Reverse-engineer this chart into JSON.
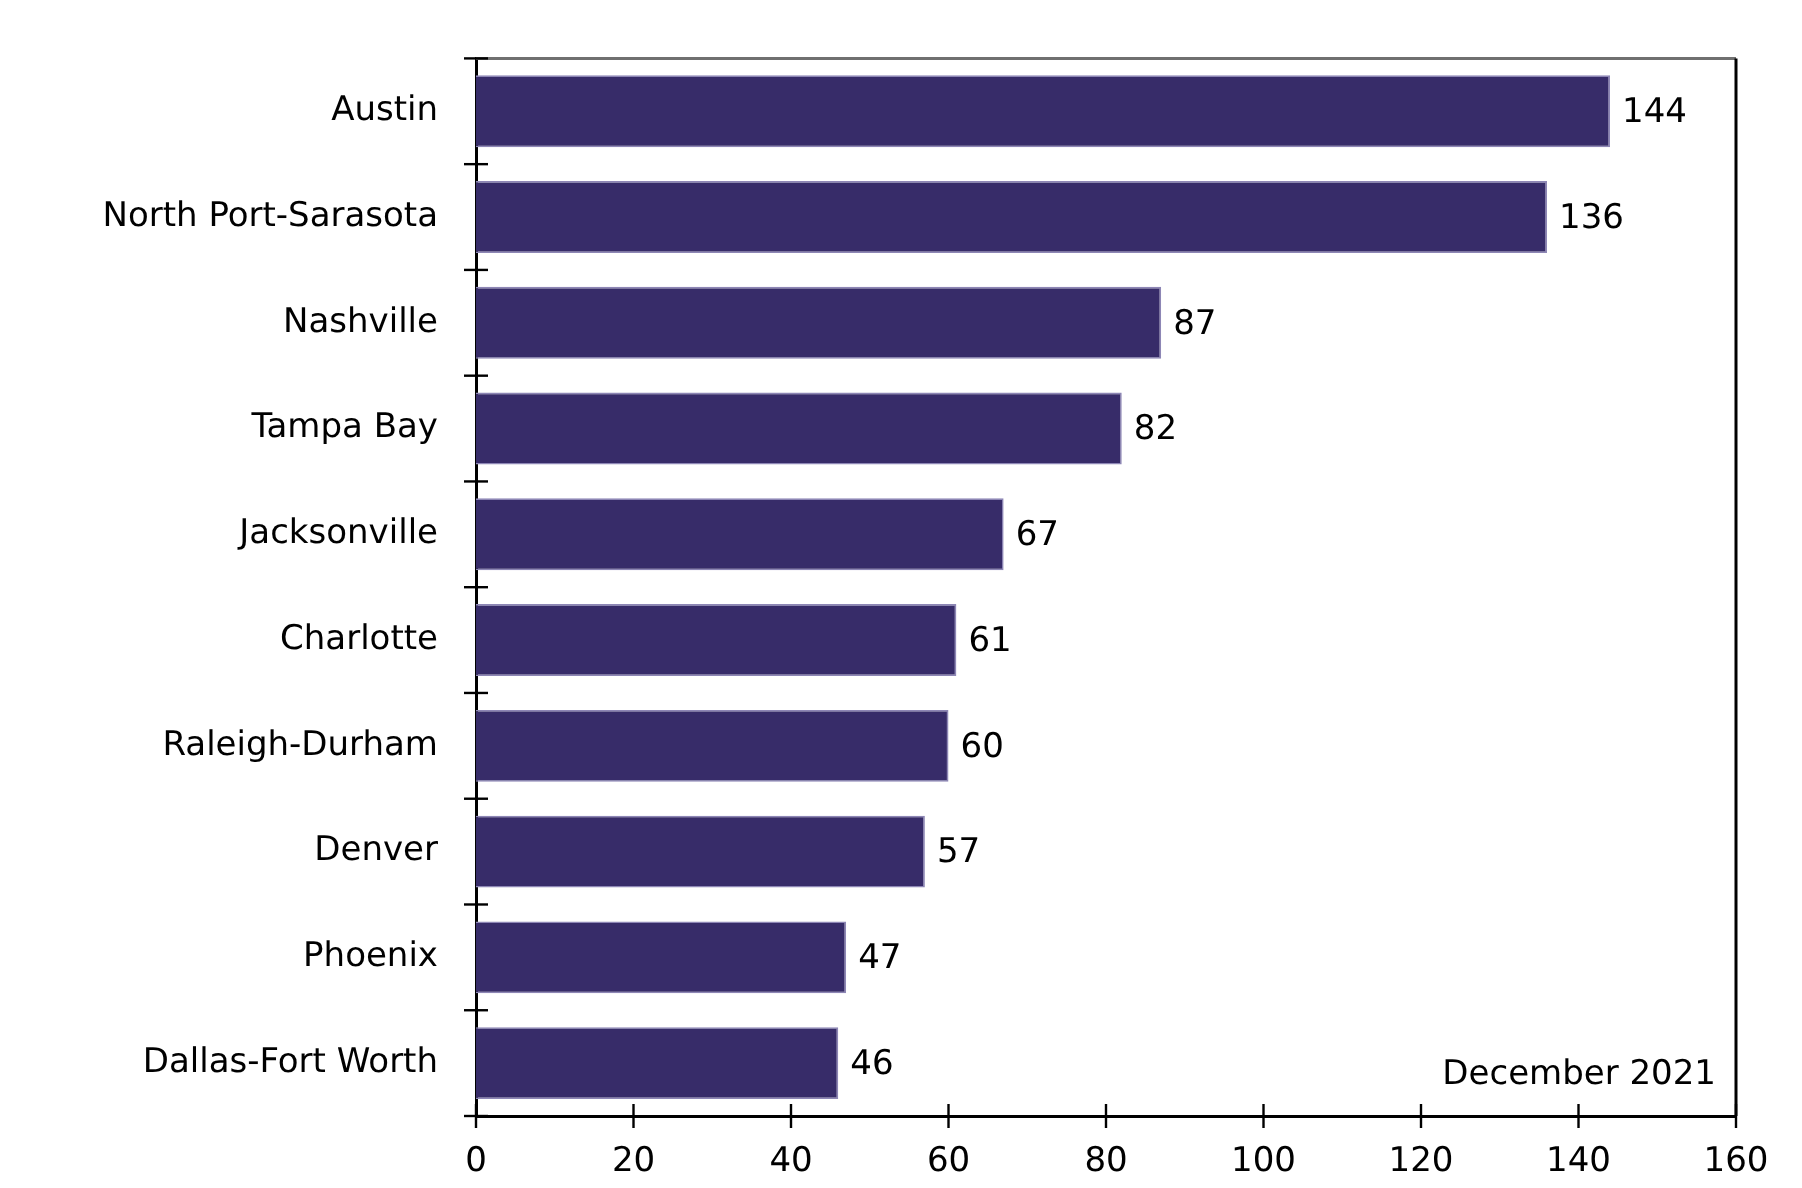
{
  "chart_data": {
    "type": "bar",
    "orientation": "horizontal",
    "categories": [
      "Austin",
      "North Port-Sarasota",
      "Nashville",
      "Tampa Bay",
      "Jacksonville",
      "Charlotte",
      "Raleigh-Durham",
      "Denver",
      "Phoenix",
      "Dallas-Fort Worth"
    ],
    "values": [
      144,
      136,
      87,
      82,
      67,
      61,
      60,
      57,
      47,
      46
    ],
    "color": "#372c69",
    "xlim": [
      0,
      160
    ],
    "xticks": [
      0,
      20,
      40,
      60,
      80,
      100,
      120,
      140,
      160
    ],
    "grid": false,
    "legend": false,
    "data_labels": true,
    "annotations": [
      "December 2021"
    ]
  }
}
